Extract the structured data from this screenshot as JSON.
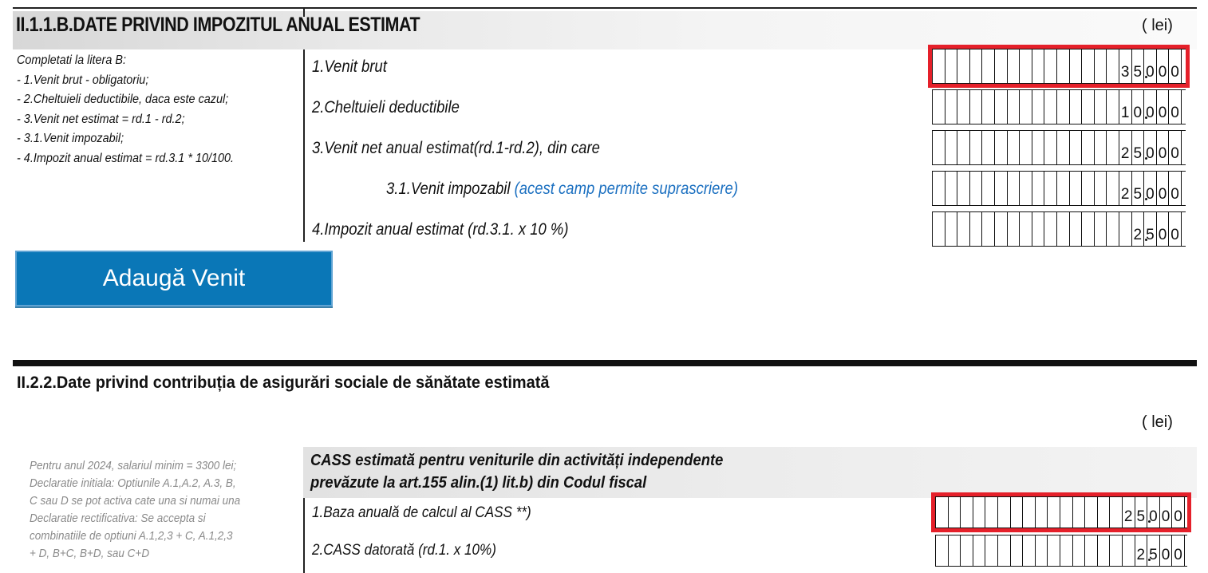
{
  "section1": {
    "title": "II.1.1.B.DATE PRIVIND IMPOZITUL ANUAL ESTIMAT",
    "unit": "( lei)",
    "instructions": [
      "Completati la litera B:",
      "- 1.Venit brut - obligatoriu;",
      "- 2.Cheltuieli deductibile, daca este cazul;",
      "- 3.Venit net estimat = rd.1 - rd.2;",
      "- 3.1.Venit impozabil;",
      "- 4.Impozit anual estimat = rd.3.1 * 10/100."
    ],
    "rows": [
      {
        "label": "1.Venit brut",
        "note": "",
        "value": "35.000",
        "digits": [
          "3",
          "5",
          "0",
          "0",
          "0"
        ],
        "highlighted": true
      },
      {
        "label": "2.Cheltuieli deductibile",
        "note": "",
        "value": "10.000",
        "digits": [
          "1",
          "0",
          "0",
          "0",
          "0"
        ],
        "highlighted": false
      },
      {
        "label": "3.Venit net anual estimat(rd.1-rd.2), din care",
        "note": "",
        "value": "25.000",
        "digits": [
          "2",
          "5",
          "0",
          "0",
          "0"
        ],
        "highlighted": false
      },
      {
        "label": "3.1.Venit impozabil ",
        "note": "(acest camp permite suprascriere)",
        "value": "25.000",
        "digits": [
          "2",
          "5",
          "0",
          "0",
          "0"
        ],
        "highlighted": false
      },
      {
        "label": "4.Impozit anual estimat (rd.3.1. x 10 %)",
        "note": "",
        "value": "2.500",
        "digits": [
          "2",
          "5",
          "0",
          "0"
        ],
        "highlighted": false
      }
    ],
    "add_button": "Adaugă Venit"
  },
  "section2": {
    "title": "II.2.2.Date privind contribuția de asigurări sociale de sănătate estimată",
    "unit": "( lei)",
    "band_title_line1": "CASS estimată pentru veniturile din activități independente",
    "band_title_line2": "prevăzute la art.155 alin.(1) lit.b) din Codul fiscal",
    "notes": [
      "Pentru anul 2024, salariul minim = 3300 lei;",
      "Declaratie initiala: Optiunile  A.1,A.2, A.3, B,",
      "C sau D se pot activa cate una si numai una",
      "Declaratie rectificativa: Se accepta si",
      "combinatiile  de  optiuni A.1,2,3 + C, A.1,2,3",
      "+ D, B+C,  B+D, sau C+D"
    ],
    "rows": [
      {
        "label": "1.Baza anuală de calcul al CASS **)",
        "value": "25.000",
        "digits": [
          "2",
          "5",
          "0",
          "0",
          "0"
        ],
        "highlighted": true
      },
      {
        "label": "2.CASS datorată (rd.1. x 10%)",
        "value": "2.500",
        "digits": [
          "2",
          "5",
          "0",
          "0"
        ],
        "highlighted": false
      }
    ]
  },
  "colors": {
    "highlight": "#e5202a",
    "button": "#0a77b7",
    "note_blue": "#1a6fc0",
    "note_gray": "#8a8a8a"
  }
}
